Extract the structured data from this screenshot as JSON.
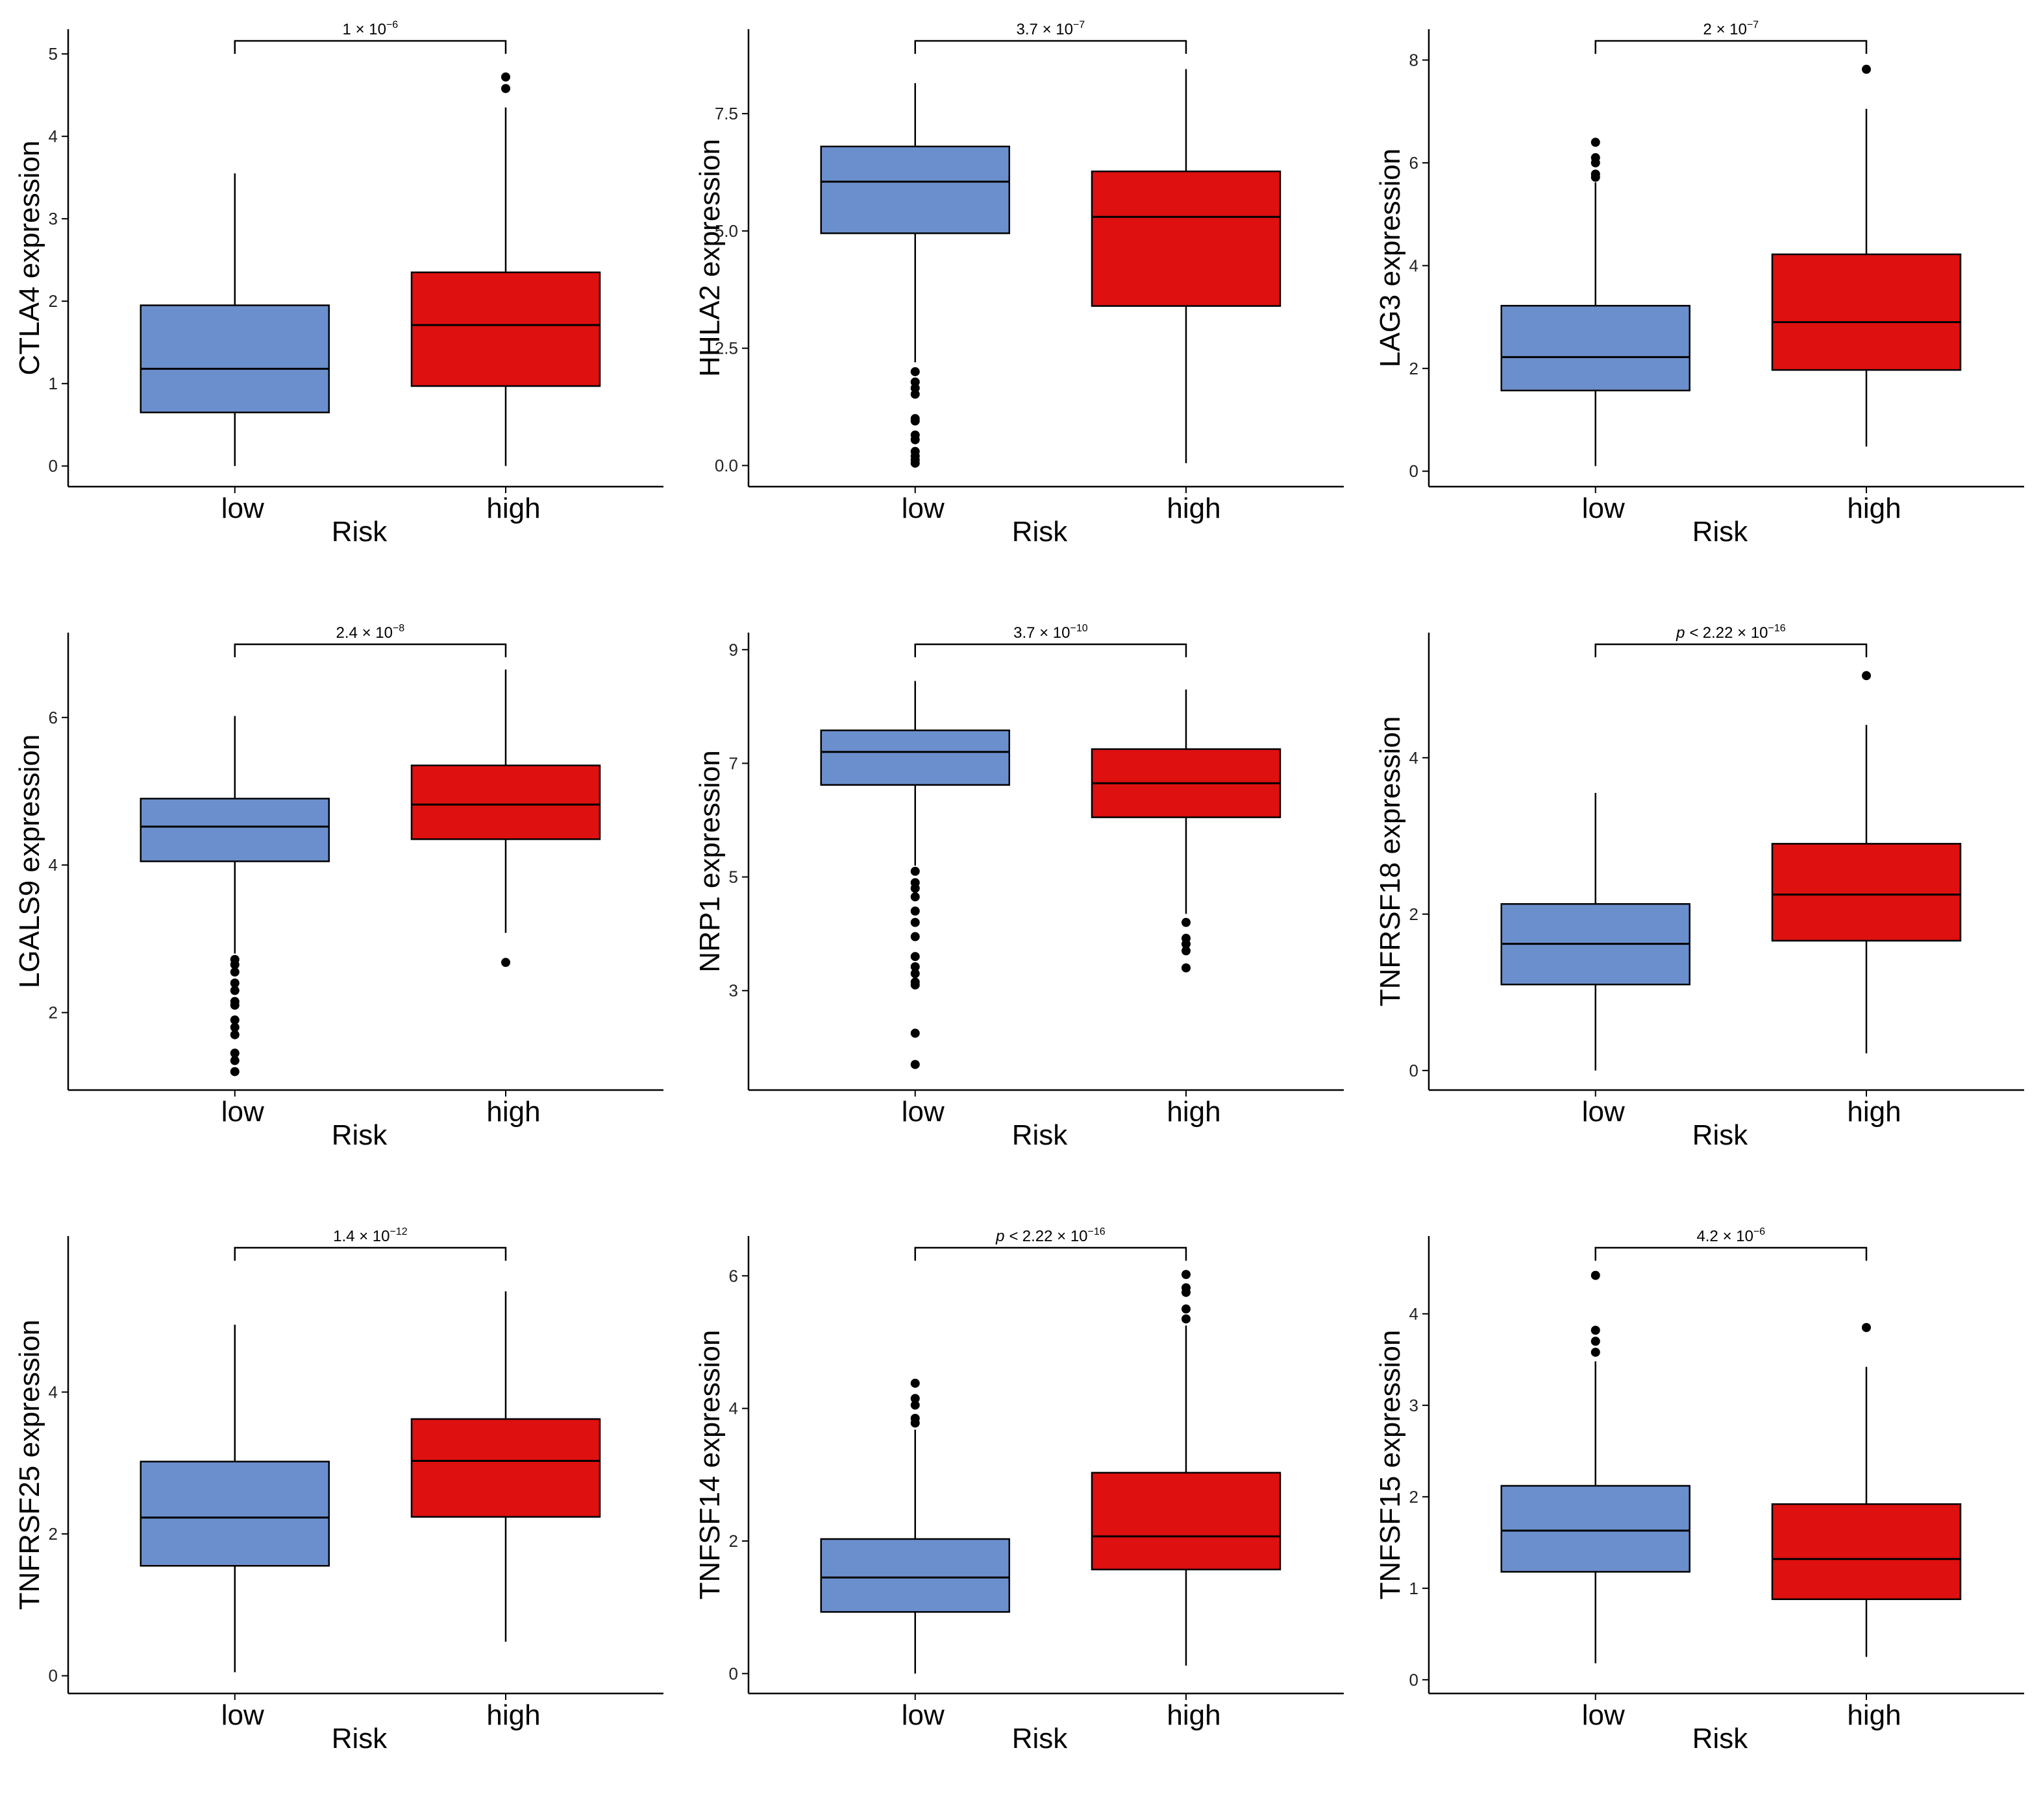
{
  "colors": {
    "low": "#6b8fcc",
    "high": "#de1010",
    "line": "#000000"
  },
  "chart_data": [
    {
      "type": "box",
      "title": "",
      "xlabel": "Risk",
      "ylabel": "CTLA4 expression",
      "categories": [
        "low",
        "high"
      ],
      "ylim": [
        -0.25,
        5.3
      ],
      "yticks": [
        0,
        1,
        2,
        3,
        4,
        5
      ],
      "ytick_labels": [
        "0",
        "1",
        "2",
        "3",
        "4",
        "5"
      ],
      "pvalue": {
        "base": "1 × 10",
        "exp": "−6",
        "prefix": ""
      },
      "boxes": [
        {
          "group": "low",
          "min": 0.0,
          "q1": 0.65,
          "median": 1.18,
          "q3": 1.95,
          "max": 3.55,
          "outliers": []
        },
        {
          "group": "high",
          "min": 0.0,
          "q1": 0.97,
          "median": 1.71,
          "q3": 2.35,
          "max": 4.35,
          "outliers": [
            4.58,
            4.72
          ]
        }
      ]
    },
    {
      "type": "box",
      "title": "",
      "xlabel": "Risk",
      "ylabel": "HHLA2 expression",
      "categories": [
        "low",
        "high"
      ],
      "ylim": [
        -0.45,
        9.3
      ],
      "yticks": [
        0,
        2.5,
        5,
        7.5
      ],
      "ytick_labels": [
        "0.0",
        "2.5",
        "5.0",
        "7.5"
      ],
      "pvalue": {
        "base": "3.7 × 10",
        "exp": "−7",
        "prefix": ""
      },
      "boxes": [
        {
          "group": "low",
          "min": 2.2,
          "q1": 4.95,
          "median": 6.05,
          "q3": 6.8,
          "max": 8.15,
          "outliers": [
            0.05,
            0.12,
            0.2,
            0.3,
            0.55,
            0.65,
            0.95,
            1.0,
            1.52,
            1.65,
            1.78,
            2.0
          ]
        },
        {
          "group": "high",
          "min": 0.05,
          "q1": 3.4,
          "median": 5.3,
          "q3": 6.27,
          "max": 8.45,
          "outliers": []
        }
      ]
    },
    {
      "type": "box",
      "title": "",
      "xlabel": "Risk",
      "ylabel": "LAG3 expression",
      "categories": [
        "low",
        "high"
      ],
      "ylim": [
        -0.3,
        8.6
      ],
      "yticks": [
        0,
        2,
        4,
        6,
        8
      ],
      "ytick_labels": [
        "0",
        "2",
        "4",
        "6",
        "8"
      ],
      "pvalue": {
        "base": "2 × 10",
        "exp": "−7",
        "prefix": ""
      },
      "boxes": [
        {
          "group": "low",
          "min": 0.1,
          "q1": 1.57,
          "median": 2.22,
          "q3": 3.22,
          "max": 5.62,
          "outliers": [
            5.72,
            5.78,
            6.0,
            6.1,
            6.4
          ]
        },
        {
          "group": "high",
          "min": 0.48,
          "q1": 1.97,
          "median": 2.9,
          "q3": 4.22,
          "max": 7.05,
          "outliers": [
            7.82
          ]
        }
      ]
    },
    {
      "type": "box",
      "title": "",
      "xlabel": "Risk",
      "ylabel": "LGALS9 expression",
      "categories": [
        "low",
        "high"
      ],
      "ylim": [
        0.95,
        7.15
      ],
      "yticks": [
        2,
        4,
        6
      ],
      "ytick_labels": [
        "2",
        "4",
        "6"
      ],
      "pvalue": {
        "base": "2.4 × 10",
        "exp": "−8",
        "prefix": ""
      },
      "boxes": [
        {
          "group": "low",
          "min": 2.8,
          "q1": 4.05,
          "median": 4.52,
          "q3": 4.9,
          "max": 6.02,
          "outliers": [
            1.2,
            1.35,
            1.45,
            1.7,
            1.8,
            1.9,
            2.1,
            2.15,
            2.3,
            2.4,
            2.55,
            2.65,
            2.72
          ]
        },
        {
          "group": "high",
          "min": 3.08,
          "q1": 4.35,
          "median": 4.82,
          "q3": 5.35,
          "max": 6.65,
          "outliers": [
            2.68
          ]
        }
      ]
    },
    {
      "type": "box",
      "title": "",
      "xlabel": "Risk",
      "ylabel": "NRP1 expression",
      "categories": [
        "low",
        "high"
      ],
      "ylim": [
        1.25,
        9.3
      ],
      "yticks": [
        3,
        5,
        7,
        9
      ],
      "ytick_labels": [
        "3",
        "5",
        "7",
        "9"
      ],
      "pvalue": {
        "base": "3.7 × 10",
        "exp": "−10",
        "prefix": ""
      },
      "boxes": [
        {
          "group": "low",
          "min": 5.2,
          "q1": 6.62,
          "median": 7.2,
          "q3": 7.58,
          "max": 8.45,
          "outliers": [
            1.7,
            2.25,
            3.1,
            3.15,
            3.3,
            3.42,
            3.6,
            3.95,
            4.2,
            4.4,
            4.65,
            4.8,
            4.9,
            5.1
          ]
        },
        {
          "group": "high",
          "min": 4.35,
          "q1": 6.05,
          "median": 6.65,
          "q3": 7.25,
          "max": 8.3,
          "outliers": [
            3.4,
            3.7,
            3.82,
            3.92,
            4.2
          ]
        }
      ]
    },
    {
      "type": "box",
      "title": "",
      "xlabel": "Risk",
      "ylabel": "TNFRSF18 expression",
      "categories": [
        "low",
        "high"
      ],
      "ylim": [
        -0.25,
        5.6
      ],
      "yticks": [
        0,
        2,
        4
      ],
      "ytick_labels": [
        "0",
        "2",
        "4"
      ],
      "pvalue": {
        "base": "2.22 × 10",
        "exp": "−16",
        "prefix": "p < "
      },
      "boxes": [
        {
          "group": "low",
          "min": 0.0,
          "q1": 1.1,
          "median": 1.62,
          "q3": 2.13,
          "max": 3.55,
          "outliers": []
        },
        {
          "group": "high",
          "min": 0.22,
          "q1": 1.66,
          "median": 2.25,
          "q3": 2.9,
          "max": 4.42,
          "outliers": [
            5.05
          ]
        }
      ]
    },
    {
      "type": "box",
      "title": "",
      "xlabel": "Risk",
      "ylabel": "TNFRSF25 expression",
      "categories": [
        "low",
        "high"
      ],
      "ylim": [
        -0.25,
        6.2
      ],
      "yticks": [
        0,
        2,
        4
      ],
      "ytick_labels": [
        "0",
        "2",
        "4"
      ],
      "pvalue": {
        "base": "1.4 × 10",
        "exp": "−12",
        "prefix": ""
      },
      "boxes": [
        {
          "group": "low",
          "min": 0.05,
          "q1": 1.55,
          "median": 2.23,
          "q3": 3.02,
          "max": 4.95,
          "outliers": []
        },
        {
          "group": "high",
          "min": 0.48,
          "q1": 2.24,
          "median": 3.03,
          "q3": 3.62,
          "max": 5.42,
          "outliers": []
        }
      ]
    },
    {
      "type": "box",
      "title": "",
      "xlabel": "Risk",
      "ylabel": "TNFSF14 expression",
      "categories": [
        "low",
        "high"
      ],
      "ylim": [
        -0.3,
        6.6
      ],
      "yticks": [
        0,
        2,
        4,
        6
      ],
      "ytick_labels": [
        "0",
        "2",
        "4",
        "6"
      ],
      "pvalue": {
        "base": "2.22 × 10",
        "exp": "−16",
        "prefix": "p < "
      },
      "boxes": [
        {
          "group": "low",
          "min": 0.0,
          "q1": 0.93,
          "median": 1.45,
          "q3": 2.03,
          "max": 3.68,
          "outliers": [
            3.78,
            3.85,
            4.05,
            4.15,
            4.38
          ]
        },
        {
          "group": "high",
          "min": 0.12,
          "q1": 1.57,
          "median": 2.07,
          "q3": 3.03,
          "max": 5.25,
          "outliers": [
            5.35,
            5.5,
            5.75,
            5.82,
            6.02
          ]
        }
      ]
    },
    {
      "type": "box",
      "title": "",
      "xlabel": "Risk",
      "ylabel": "TNFSF15 expression",
      "categories": [
        "low",
        "high"
      ],
      "ylim": [
        -0.15,
        4.85
      ],
      "yticks": [
        0,
        1,
        2,
        3,
        4
      ],
      "ytick_labels": [
        "0",
        "1",
        "2",
        "3",
        "4"
      ],
      "pvalue": {
        "base": "4.2 × 10",
        "exp": "−6",
        "prefix": ""
      },
      "boxes": [
        {
          "group": "low",
          "min": 0.18,
          "q1": 1.18,
          "median": 1.63,
          "q3": 2.12,
          "max": 3.48,
          "outliers": [
            3.58,
            3.7,
            3.82,
            4.42
          ]
        },
        {
          "group": "high",
          "min": 0.25,
          "q1": 0.88,
          "median": 1.32,
          "q3": 1.92,
          "max": 3.42,
          "outliers": [
            3.85
          ]
        }
      ]
    }
  ]
}
